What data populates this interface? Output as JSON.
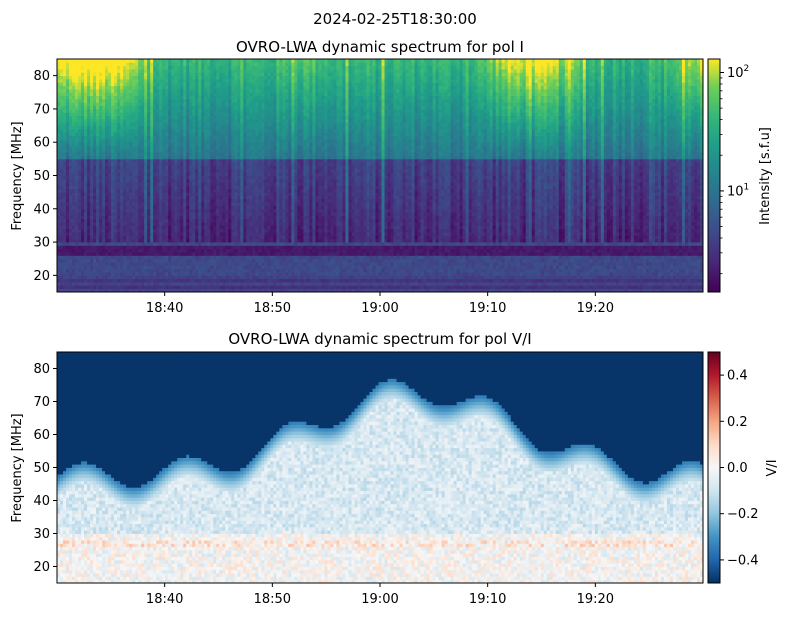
{
  "suptitle": "2024-02-25T18:30:00",
  "chart_data": [
    {
      "type": "heatmap",
      "title": "OVRO-LWA dynamic spectrum for pol I",
      "ylabel": "Frequency [MHz]",
      "xlabel": "",
      "x_range": [
        "18:30",
        "19:30"
      ],
      "xticks": [
        "18:40",
        "18:50",
        "19:00",
        "19:10",
        "19:20"
      ],
      "ylim": [
        15,
        85
      ],
      "yticks": [
        20,
        30,
        40,
        50,
        60,
        70,
        80
      ],
      "colormap": "viridis",
      "colorbar": {
        "label": "Intensity [s.f.u]",
        "scale": "log",
        "range": [
          1.4,
          130
        ],
        "ticks": [
          {
            "value": 10,
            "label": "10",
            "exp": "1"
          },
          {
            "value": 100,
            "label": "10",
            "exp": "2"
          }
        ]
      }
    },
    {
      "type": "heatmap",
      "title": "OVRO-LWA dynamic spectrum for pol V/I",
      "ylabel": "Frequency [MHz]",
      "xlabel": "",
      "x_range": [
        "18:30",
        "19:30"
      ],
      "xticks": [
        "18:40",
        "18:50",
        "19:00",
        "19:10",
        "19:20"
      ],
      "ylim": [
        15,
        85
      ],
      "yticks": [
        20,
        30,
        40,
        50,
        60,
        70,
        80
      ],
      "colormap": "RdBu_r",
      "colorbar": {
        "label": "V/I",
        "scale": "linear",
        "range": [
          -0.5,
          0.5
        ],
        "ticks": [
          {
            "value": 0.4,
            "label": "0.4"
          },
          {
            "value": 0.2,
            "label": "0.2"
          },
          {
            "value": 0.0,
            "label": "0.0"
          },
          {
            "value": -0.2,
            "label": "−0.2"
          },
          {
            "value": -0.4,
            "label": "−0.4"
          }
        ]
      }
    }
  ]
}
